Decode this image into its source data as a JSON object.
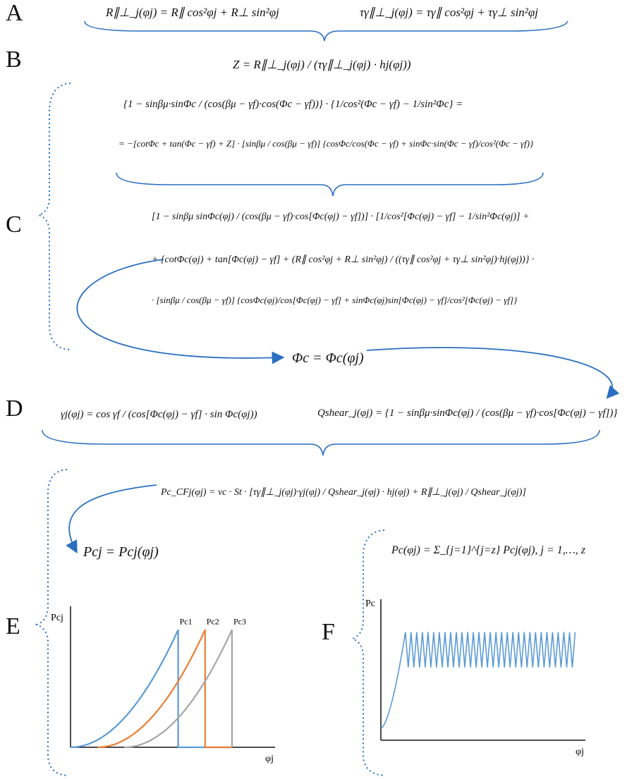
{
  "sections": {
    "A": "A",
    "B": "B",
    "C": "C",
    "D": "D",
    "E": "E",
    "F": "F"
  },
  "equations": {
    "a_left": "R∥⊥_j(φj) = R∥ cos²φj + R⊥ sin²φj",
    "a_right": "τγ∥⊥_j(φj) = τγ∥ cos²φj + τγ⊥ sin²φj",
    "b": "Z = R∥⊥_j(φj) / (τγ∥⊥_j(φj) · hj(φj))",
    "c1_line1": "{1 − sinβμ·sinΦc / (cos(βμ − γf)·cos(Φc − γf))} · {1/cos²(Φc − γf) − 1/sin²Φc} =",
    "c1_line2": "= −[cotΦc + tan(Φc − γf) + Z] · [sinβμ / cos(βμ − γf)] {cosΦc/cos(Φc − γf) + sinΦc·sin(Φc − γf)/cos²(Φc − γf)}",
    "c2_line1": "[1 − sinβμ sinΦc(φj) / (cos(βμ − γf)·cos[Φc(φj) − γf])] · [1/cos²[Φc(φj) − γf] − 1/sin²Φc(φj)] +",
    "c2_line2": "+ {cotΦc(φj) + tan[Φc(φj) − γf] + (R∥ cos²φj + R⊥ sin²φj) / ((τγ∥ cos²φj + τγ⊥ sin²φj)·hj(φj))} ·",
    "c2_line3": "· [sinβμ / cos(βμ − γf)] {cosΦc(φj)/cos[Φc(φj) − γf] + sinΦc(φj)sin[Φc(φj) − γf]/cos²[Φc(φj) − γf]}",
    "phi_c": "Φc = Φc(φj)",
    "d_gamma": "γj(φj) = cos γf / (cos[Φc(φj) − γf] · sin Φc(φj))",
    "d_q": "Qshear_j(φj) = {1 − sinβμ·sinΦc(φj) / (cos(βμ − γf)·cos[Φc(φj) − γf])}",
    "e_pcf": "Pc_CFj(φj) = vc · St · [τγ∥⊥_j(φj)·γj(φj) / Qshear_j(φj) · hj(φj) + R∥⊥_j(φj) / Qshear_j(φj)]",
    "e_pcj": "Pcj = Pcj(φj)",
    "f_sum": "Pc(φj) = Σ_{j=1}^{j=z} Pcj(φj),   j = 1,…, z"
  },
  "colors": {
    "accent": "#2a6fc0",
    "blue": "#5b9bd5",
    "orange": "#ed7d31",
    "gray": "#a5a5a5",
    "axis": "#111111"
  },
  "chart_data": [
    {
      "type": "line",
      "ylabel": "Pcj",
      "xlabel": "φj",
      "series": [
        {
          "name": "Pc1",
          "color": "#5b9bd5",
          "x": [
            0.0,
            0.2,
            0.4,
            0.6,
            0.8,
            1.0,
            1.0,
            1.5
          ],
          "y": [
            0.0,
            0.04,
            0.16,
            0.36,
            0.64,
            1.0,
            0.0,
            0.0
          ]
        },
        {
          "name": "Pc2",
          "color": "#ed7d31",
          "x": [
            0.25,
            0.45,
            0.65,
            0.85,
            1.05,
            1.25,
            1.25,
            1.5
          ],
          "y": [
            0.0,
            0.04,
            0.16,
            0.36,
            0.64,
            1.0,
            0.0,
            0.0
          ]
        },
        {
          "name": "Pc3",
          "color": "#a5a5a5",
          "x": [
            0.5,
            0.7,
            0.9,
            1.1,
            1.3,
            1.5,
            1.5
          ],
          "y": [
            0.0,
            0.04,
            0.16,
            0.36,
            0.64,
            1.0,
            0.0
          ]
        }
      ],
      "labels": [
        "Pc1",
        "Pc2",
        "Pc3"
      ],
      "xlim": [
        0,
        1.9
      ],
      "ylim": [
        0,
        1.2
      ]
    },
    {
      "type": "line",
      "ylabel": "Pc",
      "xlabel": "φj",
      "series": [
        {
          "name": "Pc",
          "color": "#5b9bd5",
          "rise": 0.52,
          "teeth": 30,
          "low": 0.62,
          "high": 0.92
        }
      ],
      "xlim": [
        0,
        1
      ],
      "ylim": [
        0,
        1.2
      ]
    }
  ]
}
